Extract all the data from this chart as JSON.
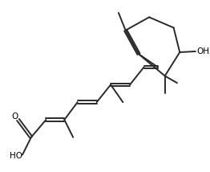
{
  "background_color": "#ffffff",
  "line_color": "#2a2a2a",
  "line_width": 1.4,
  "font_size": 7.5,
  "figsize": [
    2.62,
    2.14
  ],
  "dpi": 100,
  "xlim": [
    0,
    10.5
  ],
  "ylim": [
    0,
    8.5
  ]
}
